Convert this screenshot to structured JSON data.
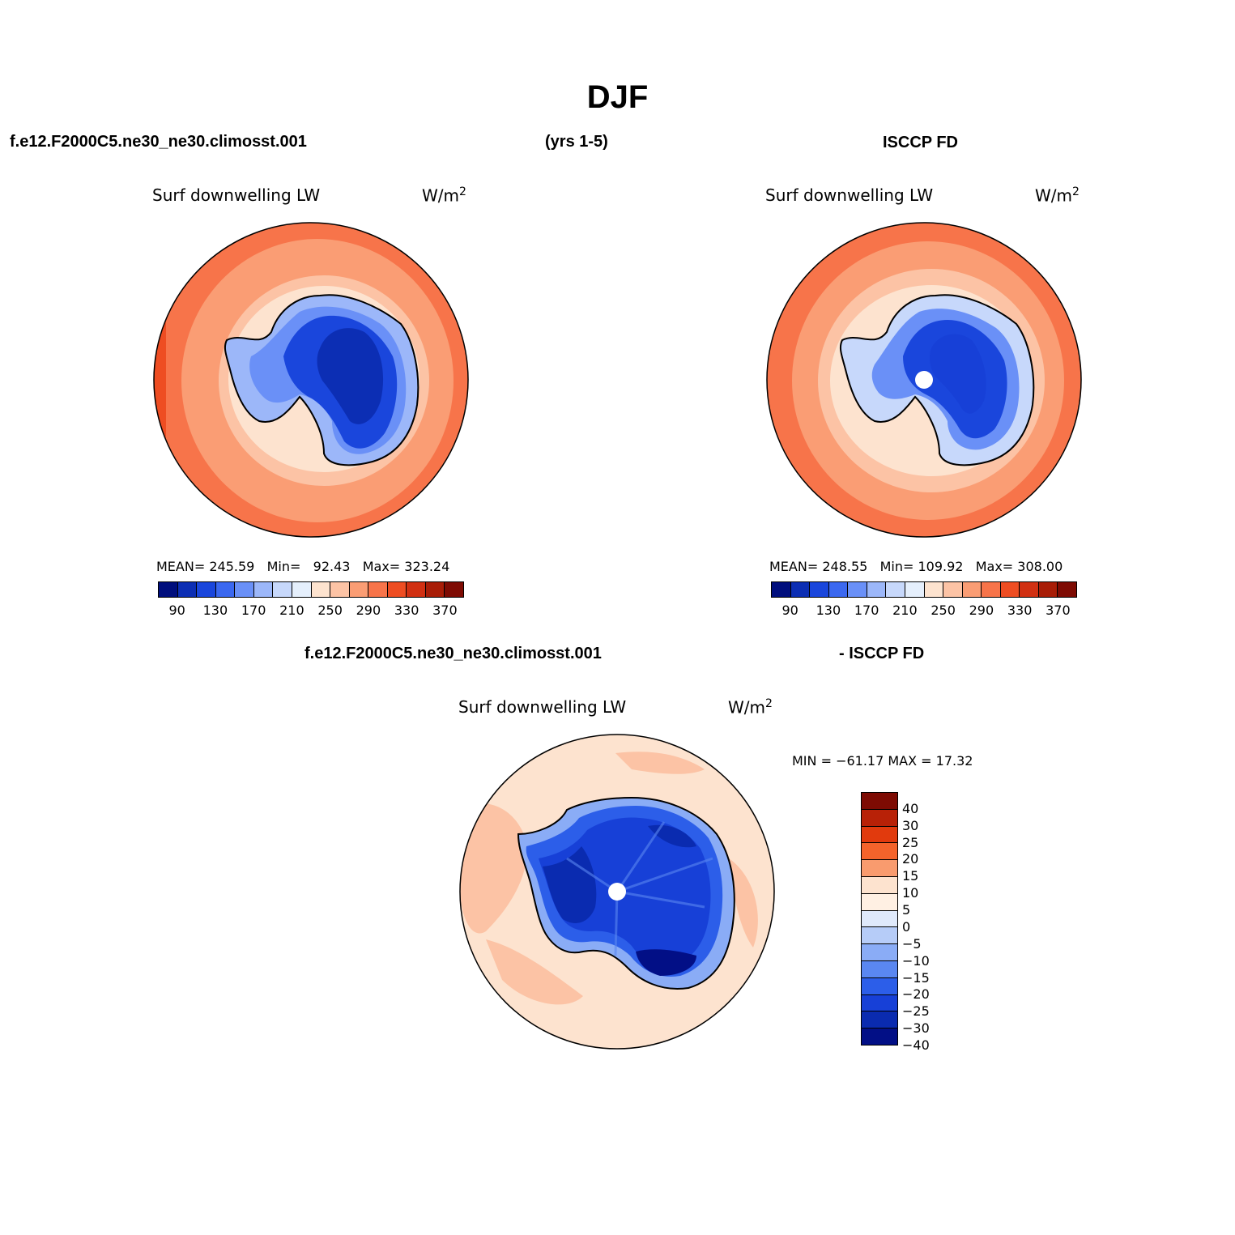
{
  "title": "DJF",
  "header": {
    "left": "f.e12.F2000C5.ne30_ne30.climosst.001",
    "center": "(yrs 1-5)",
    "right": "ISCCP FD",
    "diff_left": "f.e12.F2000C5.ne30_ne30.climosst.001",
    "diff_right": "- ISCCP FD"
  },
  "panels": {
    "model": {
      "varname": "Surf downwelling LW",
      "units_base": "W/m",
      "units_exp": "2",
      "mean_label": "MEAN=",
      "mean": "245.59",
      "min_label": "Min=",
      "min": "92.43",
      "max_label": "Max=",
      "max": "323.24"
    },
    "obs": {
      "varname": "Surf downwelling LW",
      "units_base": "W/m",
      "units_exp": "2",
      "mean_label": "MEAN=",
      "mean": "248.55",
      "min_label": "Min=",
      "min": "109.92",
      "max_label": "Max=",
      "max": "308.00"
    },
    "diff": {
      "varname": "Surf downwelling LW",
      "units_base": "W/m",
      "units_exp": "2",
      "minmax_text": "MIN = −61.17 MAX =  17.32"
    }
  },
  "colorbar_main": {
    "colors": [
      "#000e7d",
      "#0c2eb4",
      "#1a46dc",
      "#3b68f0",
      "#6a90f7",
      "#9cb7f9",
      "#c7d8fb",
      "#e5effc",
      "#fde3cf",
      "#fcc3a5",
      "#fa9d74",
      "#f7744a",
      "#ee4d22",
      "#d13012",
      "#a81d07",
      "#7e0b03"
    ],
    "ticks": [
      "90",
      "130",
      "170",
      "210",
      "250",
      "290",
      "330",
      "370"
    ]
  },
  "colorbar_diff": {
    "colors": [
      "#7e0b03",
      "#b82107",
      "#e13a0d",
      "#f4632b",
      "#f99b6e",
      "#fde3cf",
      "#fff0e3",
      "#dfe9fb",
      "#b6ccf8",
      "#8aacf6",
      "#5a87f1",
      "#2c5ee9",
      "#1740d7",
      "#0a2bb0",
      "#020f86"
    ],
    "ticks": [
      "40",
      "30",
      "25",
      "20",
      "15",
      "10",
      "5",
      "0",
      "−5",
      "−10",
      "−15",
      "−20",
      "−25",
      "−30",
      "−40"
    ]
  },
  "map": {
    "ocean_outer": "#f7744a",
    "ocean_mid": "#fa9d74",
    "ocean_inner": "#fcc3a5",
    "coast_band": "#fde3cf",
    "ice_edge": "#9cb7f9",
    "ice_mid": "#3b68f0",
    "ice_inner": "#1a46dc",
    "ice_core": "#0c2eb4",
    "diff_ocean": "#fde3cf",
    "diff_warm": "#f99b6e",
    "diff_core": "#0a2bb0"
  }
}
